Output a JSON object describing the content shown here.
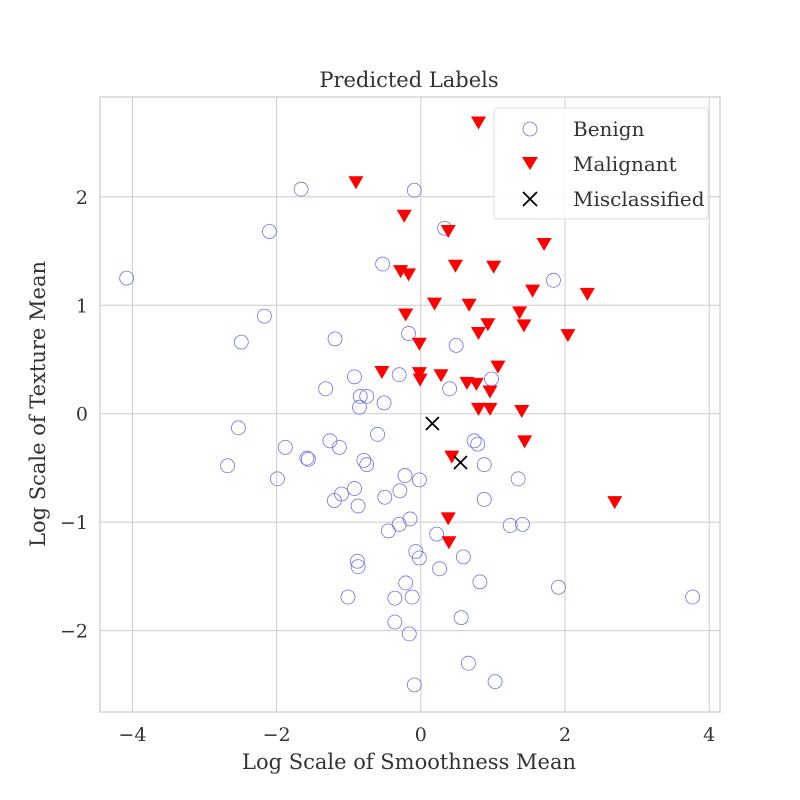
{
  "chart_data": {
    "type": "scatter",
    "title": "Predicted Labels",
    "xlabel": "Log Scale of Smoothness Mean",
    "ylabel": "Log Scale of Texture Mean",
    "xlim": [
      -4.45,
      4.15
    ],
    "ylim": [
      -2.75,
      2.92
    ],
    "x_ticks": [
      -4,
      -2,
      0,
      2,
      4
    ],
    "x_tick_labels": [
      "−4",
      "−2",
      "0",
      "2",
      "4"
    ],
    "y_ticks": [
      -2,
      -1,
      0,
      1,
      2
    ],
    "y_tick_labels": [
      "−2",
      "−1",
      "0",
      "1",
      "2"
    ],
    "grid": true,
    "legend_position": "top-right",
    "colors": {
      "benign": "#7070ee",
      "malignant": "#ff0000",
      "misclassified": "#000000",
      "grid": "#cccccc",
      "axes_edge": "#cccccc"
    },
    "series": [
      {
        "name": "Benign",
        "marker": "open-circle",
        "points": [
          [
            -4.08,
            1.25
          ],
          [
            -1.66,
            2.07
          ],
          [
            -0.09,
            2.06
          ],
          [
            -2.1,
            1.68
          ],
          [
            0.33,
            1.71
          ],
          [
            -0.53,
            1.38
          ],
          [
            -2.17,
            0.9
          ],
          [
            -2.49,
            0.66
          ],
          [
            -1.19,
            0.69
          ],
          [
            -0.17,
            0.74
          ],
          [
            0.49,
            0.63
          ],
          [
            1.84,
            1.23
          ],
          [
            -0.3,
            0.36
          ],
          [
            0.4,
            0.23
          ],
          [
            -1.32,
            0.23
          ],
          [
            -0.92,
            0.34
          ],
          [
            -0.84,
            0.16
          ],
          [
            -0.75,
            0.16
          ],
          [
            -0.85,
            0.06
          ],
          [
            -0.51,
            0.1
          ],
          [
            -0.6,
            -0.19
          ],
          [
            -2.53,
            -0.13
          ],
          [
            -1.26,
            -0.25
          ],
          [
            -1.13,
            -0.31
          ],
          [
            -1.58,
            -0.41
          ],
          [
            -1.56,
            -0.42
          ],
          [
            -1.88,
            -0.31
          ],
          [
            -2.68,
            -0.48
          ],
          [
            -0.75,
            -0.47
          ],
          [
            -0.79,
            -0.43
          ],
          [
            -1.99,
            -0.6
          ],
          [
            -0.22,
            -0.57
          ],
          [
            -0.02,
            -0.61
          ],
          [
            0.74,
            -0.25
          ],
          [
            0.79,
            -0.28
          ],
          [
            0.88,
            -0.47
          ],
          [
            0.98,
            0.32
          ],
          [
            -0.92,
            -0.69
          ],
          [
            -1.1,
            -0.74
          ],
          [
            -1.2,
            -0.8
          ],
          [
            -0.87,
            -0.85
          ],
          [
            -0.5,
            -0.77
          ],
          [
            -0.29,
            -0.71
          ],
          [
            0.88,
            -0.79
          ],
          [
            1.35,
            -0.6
          ],
          [
            -0.15,
            -0.97
          ],
          [
            -0.3,
            -1.02
          ],
          [
            -0.45,
            -1.08
          ],
          [
            0.22,
            -1.11
          ],
          [
            1.24,
            -1.03
          ],
          [
            1.41,
            -1.02
          ],
          [
            -0.07,
            -1.27
          ],
          [
            -0.02,
            -1.33
          ],
          [
            0.59,
            -1.32
          ],
          [
            0.26,
            -1.43
          ],
          [
            -0.88,
            -1.36
          ],
          [
            -0.87,
            -1.41
          ],
          [
            -0.21,
            -1.56
          ],
          [
            0.82,
            -1.55
          ],
          [
            1.91,
            -1.6
          ],
          [
            -1.01,
            -1.69
          ],
          [
            -0.36,
            -1.7
          ],
          [
            -0.12,
            -1.69
          ],
          [
            3.77,
            -1.69
          ],
          [
            -0.36,
            -1.92
          ],
          [
            0.56,
            -1.88
          ],
          [
            -0.16,
            -2.03
          ],
          [
            0.66,
            -2.3
          ],
          [
            -0.09,
            -2.5
          ],
          [
            1.03,
            -2.47
          ]
        ]
      },
      {
        "name": "Malignant",
        "marker": "filled-triangle-down",
        "points": [
          [
            0.8,
            2.68
          ],
          [
            -0.9,
            2.13
          ],
          [
            -0.23,
            1.82
          ],
          [
            0.38,
            1.68
          ],
          [
            1.71,
            1.56
          ],
          [
            -0.28,
            1.31
          ],
          [
            -0.17,
            1.28
          ],
          [
            0.48,
            1.36
          ],
          [
            1.01,
            1.35
          ],
          [
            1.55,
            1.13
          ],
          [
            2.31,
            1.1
          ],
          [
            0.19,
            1.01
          ],
          [
            0.67,
            1.0
          ],
          [
            1.37,
            0.93
          ],
          [
            -0.21,
            0.91
          ],
          [
            0.93,
            0.82
          ],
          [
            1.43,
            0.81
          ],
          [
            0.8,
            0.74
          ],
          [
            2.04,
            0.72
          ],
          [
            -0.02,
            0.64
          ],
          [
            1.07,
            0.43
          ],
          [
            -0.54,
            0.38
          ],
          [
            -0.02,
            0.37
          ],
          [
            0.28,
            0.35
          ],
          [
            -0.01,
            0.31
          ],
          [
            0.64,
            0.28
          ],
          [
            0.77,
            0.27
          ],
          [
            0.96,
            0.2
          ],
          [
            0.8,
            0.04
          ],
          [
            0.96,
            0.04
          ],
          [
            1.4,
            0.02
          ],
          [
            1.44,
            -0.26
          ],
          [
            0.43,
            -0.4
          ],
          [
            0.38,
            -0.97
          ],
          [
            2.69,
            -0.82
          ],
          [
            0.39,
            -1.19
          ]
        ]
      },
      {
        "name": "Misclassified",
        "marker": "x",
        "points": [
          [
            0.16,
            -0.09
          ],
          [
            0.55,
            -0.45
          ]
        ]
      }
    ]
  }
}
